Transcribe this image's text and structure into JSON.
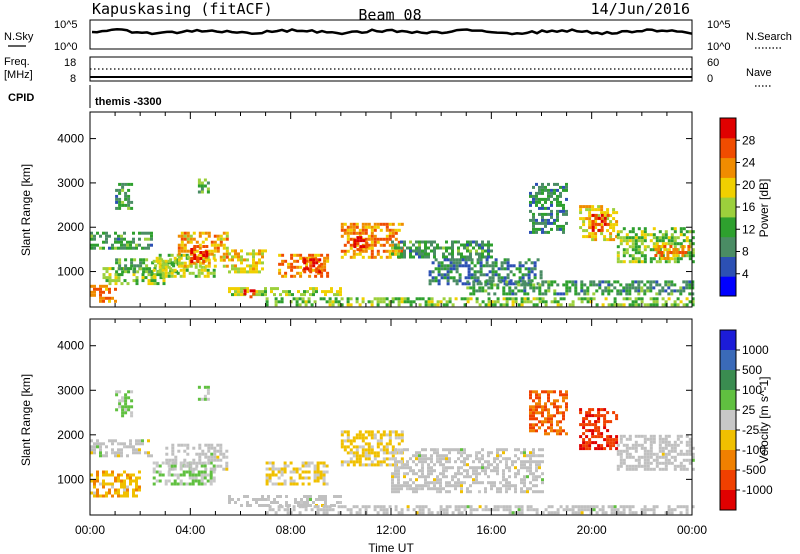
{
  "header": {
    "station": "Kapuskasing (fitACF)",
    "beam": "Beam 08",
    "date": "14/Jun/2016"
  },
  "status_panels": {
    "nsky": {
      "label": "N.Sky",
      "left_ticks": [
        "10^5",
        "10^0"
      ],
      "right_ticks": [
        "10^5",
        "10^0"
      ],
      "right_label": "N.Search"
    },
    "freq": {
      "label_line1": "Freq.",
      "label_line2": "[MHz]",
      "left_ticks": [
        "18",
        "8"
      ],
      "right_ticks": [
        "60",
        "0"
      ],
      "right_label": "Nave"
    },
    "cpid": {
      "label": "CPID",
      "value": "themis -3300"
    }
  },
  "colors": {
    "power_scale": [
      "#0000ff",
      "#2c50b4",
      "#4a8c64",
      "#2ea02e",
      "#9cd03c",
      "#f0d000",
      "#f08c00",
      "#f04c00",
      "#e00000"
    ],
    "velocity_scale": [
      "#1c1cd8",
      "#3a6ab8",
      "#3a8c50",
      "#60c040",
      "#c8c8c8",
      "#f0c000",
      "#f08000",
      "#f04000",
      "#e00000"
    ],
    "ground_scatter": "#c0c0c0"
  },
  "chart_data": [
    {
      "type": "heatmap",
      "title": "Power",
      "xlabel": "",
      "ylabel": "Slant Range [km]",
      "x_range_hours": [
        0,
        24
      ],
      "ylim": [
        200,
        4600
      ],
      "y_ticks": [
        1000,
        2000,
        3000,
        4000
      ],
      "colorbar": {
        "label": "Power [dB]",
        "ticks": [
          "4",
          "8",
          "12",
          "16",
          "20",
          "24",
          "28"
        ],
        "range": [
          0,
          30
        ]
      },
      "regions": [
        {
          "t": [
            0.0,
            2.5
          ],
          "r": [
            1500,
            1900
          ],
          "value": 10
        },
        {
          "t": [
            0.0,
            1.0
          ],
          "r": [
            300,
            700
          ],
          "value": 22
        },
        {
          "t": [
            0.5,
            3.0
          ],
          "r": [
            700,
            1100
          ],
          "value": 14
        },
        {
          "t": [
            1.0,
            3.5
          ],
          "r": [
            1000,
            1300
          ],
          "value": 12
        },
        {
          "t": [
            2.5,
            5.0
          ],
          "r": [
            900,
            1400
          ],
          "value": 16
        },
        {
          "t": [
            3.5,
            5.5
          ],
          "r": [
            1100,
            1900
          ],
          "value": 20
        },
        {
          "t": [
            4.0,
            4.6
          ],
          "r": [
            1200,
            1600
          ],
          "value": 28
        },
        {
          "t": [
            5.5,
            7.0
          ],
          "r": [
            1000,
            1500
          ],
          "value": 18
        },
        {
          "t": [
            5.5,
            10.0
          ],
          "r": [
            450,
            650
          ],
          "value": 16
        },
        {
          "t": [
            6.0,
            6.6
          ],
          "r": [
            450,
            600
          ],
          "value": 26
        },
        {
          "t": [
            7.5,
            9.5
          ],
          "r": [
            900,
            1400
          ],
          "value": 22
        },
        {
          "t": [
            8.5,
            9.2
          ],
          "r": [
            1000,
            1300
          ],
          "value": 27
        },
        {
          "t": [
            10.0,
            12.5
          ],
          "r": [
            1300,
            2100
          ],
          "value": 22
        },
        {
          "t": [
            10.5,
            11.0
          ],
          "r": [
            1500,
            1800
          ],
          "value": 28
        },
        {
          "t": [
            12.0,
            16.0
          ],
          "r": [
            1300,
            1700
          ],
          "value": 10
        },
        {
          "t": [
            13.5,
            18.0
          ],
          "r": [
            700,
            1300
          ],
          "value": 8
        },
        {
          "t": [
            15.0,
            24.0
          ],
          "r": [
            500,
            800
          ],
          "value": 10
        },
        {
          "t": [
            7.0,
            24.0
          ],
          "r": [
            220,
            420
          ],
          "value": 14
        },
        {
          "t": [
            17.5,
            19.0
          ],
          "r": [
            1900,
            3000
          ],
          "value": 9
        },
        {
          "t": [
            19.5,
            21.0
          ],
          "r": [
            1700,
            2500
          ],
          "value": 18
        },
        {
          "t": [
            20.0,
            20.6
          ],
          "r": [
            1900,
            2300
          ],
          "value": 28
        },
        {
          "t": [
            21.0,
            24.0
          ],
          "r": [
            1200,
            2000
          ],
          "value": 14
        },
        {
          "t": [
            22.5,
            24.0
          ],
          "r": [
            1300,
            1600
          ],
          "value": 22
        },
        {
          "t": [
            1.0,
            1.6
          ],
          "r": [
            2400,
            3000
          ],
          "value": 10
        },
        {
          "t": [
            4.3,
            4.7
          ],
          "r": [
            2800,
            3100
          ],
          "value": 12
        }
      ]
    },
    {
      "type": "heatmap",
      "title": "Velocity",
      "xlabel": "Time UT",
      "ylabel": "Slant Range [km]",
      "x_ticks": [
        "00:00",
        "04:00",
        "08:00",
        "12:00",
        "16:00",
        "20:00",
        "00:00"
      ],
      "x_range_hours": [
        0,
        24
      ],
      "ylim": [
        200,
        4600
      ],
      "y_ticks": [
        1000,
        2000,
        3000,
        4000
      ],
      "colorbar": {
        "label": "Velocity [m s^-1]",
        "ticks": [
          "1000",
          "500",
          "100",
          "25",
          "-25",
          "-100",
          "-500",
          "-1000"
        ],
        "range": [
          -1200,
          1200
        ]
      },
      "regions": [
        {
          "t": [
            0.0,
            2.5
          ],
          "r": [
            1500,
            1900
          ],
          "value": 0,
          "ground_scatter": true
        },
        {
          "t": [
            0.0,
            2.0
          ],
          "r": [
            600,
            1200
          ],
          "value": -300
        },
        {
          "t": [
            2.5,
            5.0
          ],
          "r": [
            900,
            1400
          ],
          "value": 150
        },
        {
          "t": [
            3.0,
            5.5
          ],
          "r": [
            1200,
            1800
          ],
          "value": 0,
          "ground_scatter": true
        },
        {
          "t": [
            5.5,
            10.0
          ],
          "r": [
            400,
            650
          ],
          "value": 0,
          "ground_scatter": true
        },
        {
          "t": [
            7.0,
            9.5
          ],
          "r": [
            900,
            1400
          ],
          "value": -150
        },
        {
          "t": [
            10.0,
            12.5
          ],
          "r": [
            1300,
            2100
          ],
          "value": -200
        },
        {
          "t": [
            12.0,
            18.0
          ],
          "r": [
            700,
            1700
          ],
          "value": 0,
          "ground_scatter": true
        },
        {
          "t": [
            17.5,
            19.0
          ],
          "r": [
            2000,
            3000
          ],
          "value": -700
        },
        {
          "t": [
            19.5,
            21.0
          ],
          "r": [
            1700,
            2600
          ],
          "value": -900
        },
        {
          "t": [
            21.0,
            24.0
          ],
          "r": [
            1200,
            2000
          ],
          "value": 0,
          "ground_scatter": true
        },
        {
          "t": [
            7.0,
            24.0
          ],
          "r": [
            220,
            420
          ],
          "value": 0,
          "ground_scatter": true
        },
        {
          "t": [
            1.0,
            1.6
          ],
          "r": [
            2400,
            3000
          ],
          "value": 200
        },
        {
          "t": [
            4.3,
            4.7
          ],
          "r": [
            2800,
            3100
          ],
          "value": 150
        }
      ]
    }
  ]
}
